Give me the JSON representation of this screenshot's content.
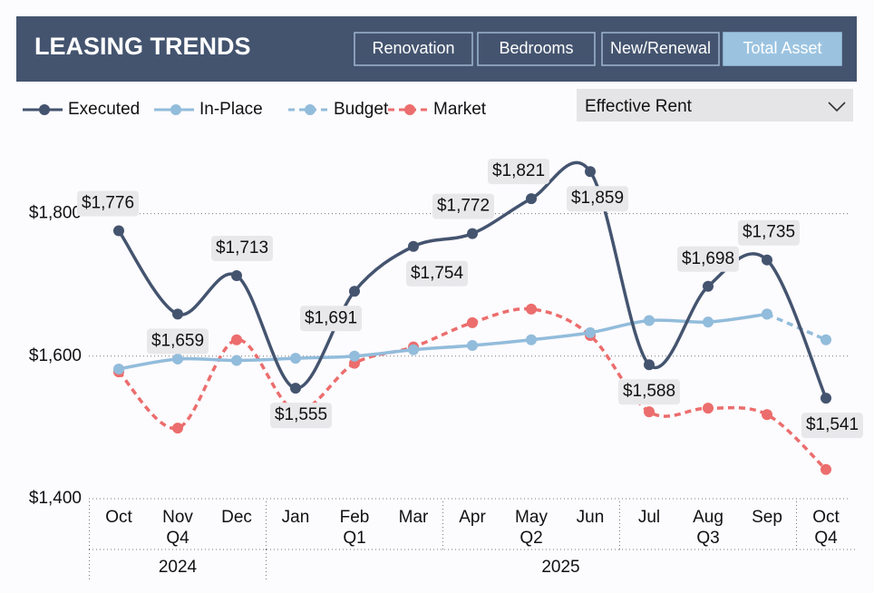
{
  "header": {
    "title": "LEASING TRENDS",
    "buttons": [
      "Renovation",
      "Bedrooms",
      "New/Renewal",
      "Total Asset"
    ],
    "active": 3
  },
  "dropdown": "Effective Rent",
  "chart_data": {
    "type": "line",
    "categories": [
      "Oct",
      "Nov",
      "Dec",
      "Jan",
      "Feb",
      "Mar",
      "Apr",
      "May",
      "Jun",
      "Jul",
      "Aug",
      "Sep",
      "Oct"
    ],
    "quarters": [
      "Q4",
      "Q4",
      "Q4",
      "Q1",
      "Q1",
      "Q1",
      "Q2",
      "Q2",
      "Q2",
      "Q3",
      "Q3",
      "Q3",
      "Q4"
    ],
    "years": [
      "2024",
      "2024",
      "2024",
      "2025",
      "2025",
      "2025",
      "2025",
      "2025",
      "2025",
      "2025",
      "2025",
      "2025",
      "2025"
    ],
    "ylim": [
      1400,
      1900
    ],
    "yticks": [
      {
        "value": 1400,
        "label": "$1,400"
      },
      {
        "value": 1600,
        "label": "$1,600"
      },
      {
        "value": 1800,
        "label": "$1,800"
      }
    ],
    "grid": true,
    "series": [
      {
        "name": "Executed",
        "color": "#44546f",
        "dash": false,
        "values": [
          1776,
          1659,
          1713,
          1555,
          1691,
          1754,
          1772,
          1821,
          1859,
          1588,
          1698,
          1735,
          1541
        ],
        "value_labels": [
          "$1,776",
          "$1,659",
          "$1,713",
          "$1,555",
          "$1,691",
          "$1,754",
          "$1,772",
          "$1,821",
          "$1,859",
          "$1,588",
          "$1,698",
          "$1,735",
          "$1,541"
        ]
      },
      {
        "name": "In-Place",
        "color": "#92bcdb",
        "dash": false,
        "values": [
          1582,
          1596,
          1594,
          1597,
          1600,
          1609,
          1615,
          1623,
          1633,
          1650,
          1648,
          1659,
          null
        ]
      },
      {
        "name": "Budget",
        "color": "#92bcdb",
        "dash": true,
        "values": [
          null,
          null,
          null,
          null,
          null,
          null,
          null,
          null,
          null,
          null,
          null,
          1659,
          1623
        ]
      },
      {
        "name": "Market",
        "color": "#ec6d6d",
        "dash": true,
        "values": [
          1578,
          1499,
          1623,
          1524,
          1590,
          1613,
          1647,
          1666,
          1629,
          1522,
          1527,
          1518,
          1441
        ]
      }
    ]
  }
}
